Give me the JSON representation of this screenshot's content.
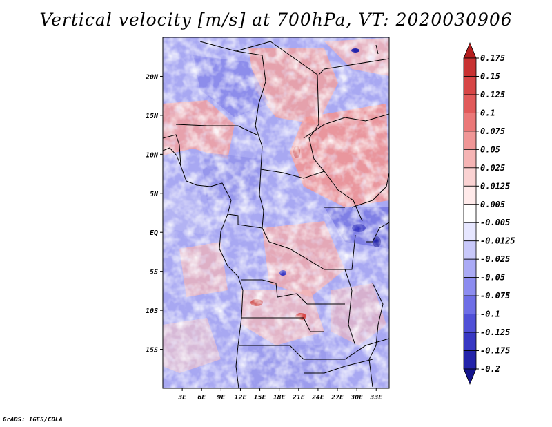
{
  "title": "Vertical velocity [m/s] at 700hPa, VT: 2020030906",
  "credit": "GrADS: IGES/COLA",
  "map": {
    "lon_range": [
      0,
      35
    ],
    "lat_range": [
      -20,
      25
    ],
    "lat_ticks": [
      {
        "label": "20N",
        "value": 20
      },
      {
        "label": "15N",
        "value": 15
      },
      {
        "label": "10N",
        "value": 10
      },
      {
        "label": "5N",
        "value": 5
      },
      {
        "label": "EQ",
        "value": 0
      },
      {
        "label": "5S",
        "value": -5
      },
      {
        "label": "10S",
        "value": -10
      },
      {
        "label": "15S",
        "value": -15
      }
    ],
    "lon_ticks": [
      {
        "label": "3E",
        "value": 3
      },
      {
        "label": "6E",
        "value": 6
      },
      {
        "label": "9E",
        "value": 9
      },
      {
        "label": "12E",
        "value": 12
      },
      {
        "label": "15E",
        "value": 15
      },
      {
        "label": "18E",
        "value": 18
      },
      {
        "label": "21E",
        "value": 21
      },
      {
        "label": "24E",
        "value": 24
      },
      {
        "label": "27E",
        "value": 27
      },
      {
        "label": "30E",
        "value": 30
      },
      {
        "label": "33E",
        "value": 33
      }
    ]
  },
  "colorbar": {
    "levels": [
      "0.175",
      "0.15",
      "0.125",
      "0.1",
      "0.075",
      "0.05",
      "0.025",
      "0.0125",
      "0.005",
      "-0.005",
      "-0.0125",
      "-0.025",
      "-0.05",
      "-0.075",
      "-0.1",
      "-0.125",
      "-0.175",
      "-0.2"
    ],
    "colors": [
      "#b41e1e",
      "#c83232",
      "#d74646",
      "#e15a5a",
      "#eb7878",
      "#f09696",
      "#f5b4b4",
      "#fad2d2",
      "#ffeaea",
      "#ffffff",
      "#e6e6ff",
      "#c8c8fa",
      "#aaaaf5",
      "#8c8cf0",
      "#6e6ee6",
      "#5050d7",
      "#3737c3",
      "#2323aa",
      "#14148c"
    ]
  }
}
